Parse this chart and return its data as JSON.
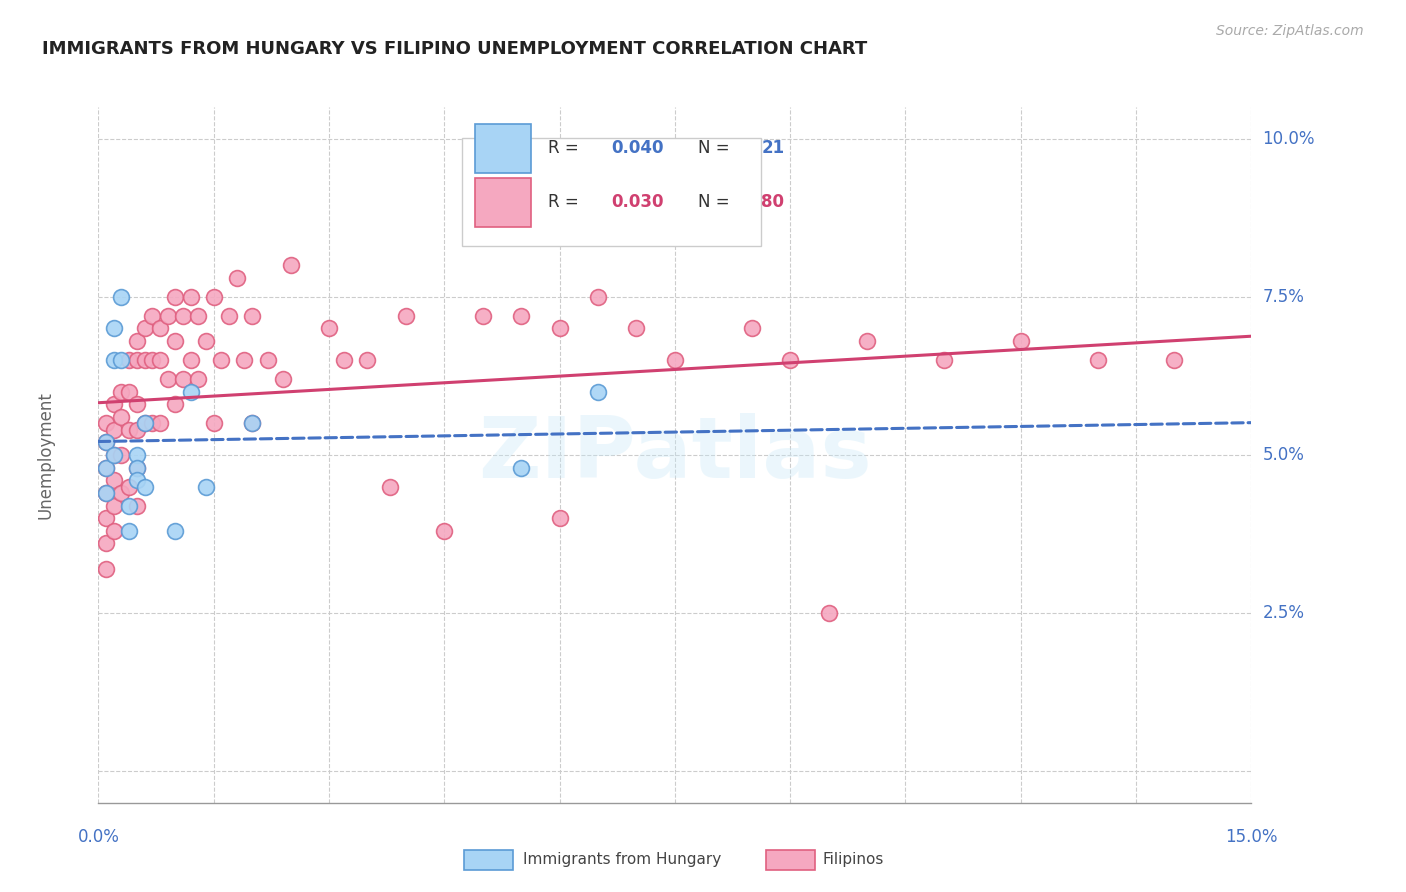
{
  "title": "IMMIGRANTS FROM HUNGARY VS FILIPINO UNEMPLOYMENT CORRELATION CHART",
  "source": "Source: ZipAtlas.com",
  "ylabel": "Unemployment",
  "color_hungary_fill": "#a8d4f5",
  "color_hungary_edge": "#5b9bd5",
  "color_filipino_fill": "#f5a8c0",
  "color_filipino_edge": "#e06080",
  "color_blue": "#4472C4",
  "color_pink": "#d04070",
  "color_label_blue": "#4472C4",
  "color_grid": "#cccccc",
  "xlim": [
    0.0,
    0.15
  ],
  "ylim": [
    -0.005,
    0.105
  ],
  "ytick_vals": [
    0.0,
    0.025,
    0.05,
    0.075,
    0.1
  ],
  "ytick_labels": [
    "",
    "2.5%",
    "5.0%",
    "7.5%",
    "10.0%"
  ],
  "xtick_vals": [
    0.0,
    0.015,
    0.03,
    0.045,
    0.06,
    0.075,
    0.09,
    0.105,
    0.12,
    0.135,
    0.15
  ],
  "watermark": "ZIPatlas",
  "hungary_x": [
    0.001,
    0.001,
    0.001,
    0.002,
    0.002,
    0.002,
    0.003,
    0.003,
    0.004,
    0.004,
    0.005,
    0.005,
    0.005,
    0.006,
    0.006,
    0.01,
    0.012,
    0.014,
    0.02,
    0.055,
    0.065
  ],
  "hungary_y": [
    0.052,
    0.048,
    0.044,
    0.07,
    0.065,
    0.05,
    0.075,
    0.065,
    0.042,
    0.038,
    0.05,
    0.048,
    0.046,
    0.055,
    0.045,
    0.038,
    0.06,
    0.045,
    0.055,
    0.048,
    0.06
  ],
  "filipino_x": [
    0.001,
    0.001,
    0.001,
    0.001,
    0.001,
    0.001,
    0.001,
    0.002,
    0.002,
    0.002,
    0.002,
    0.002,
    0.002,
    0.003,
    0.003,
    0.003,
    0.003,
    0.004,
    0.004,
    0.004,
    0.004,
    0.005,
    0.005,
    0.005,
    0.005,
    0.005,
    0.005,
    0.006,
    0.006,
    0.006,
    0.007,
    0.007,
    0.007,
    0.008,
    0.008,
    0.008,
    0.009,
    0.009,
    0.01,
    0.01,
    0.01,
    0.011,
    0.011,
    0.012,
    0.012,
    0.013,
    0.013,
    0.014,
    0.015,
    0.015,
    0.016,
    0.017,
    0.018,
    0.019,
    0.02,
    0.02,
    0.022,
    0.024,
    0.025,
    0.03,
    0.032,
    0.035,
    0.04,
    0.05,
    0.055,
    0.06,
    0.065,
    0.07,
    0.075,
    0.085,
    0.09,
    0.1,
    0.11,
    0.12,
    0.13,
    0.14,
    0.038,
    0.045,
    0.06,
    0.095
  ],
  "filipino_y": [
    0.055,
    0.052,
    0.048,
    0.044,
    0.04,
    0.036,
    0.032,
    0.058,
    0.054,
    0.05,
    0.046,
    0.042,
    0.038,
    0.06,
    0.056,
    0.05,
    0.044,
    0.065,
    0.06,
    0.054,
    0.045,
    0.068,
    0.065,
    0.058,
    0.054,
    0.048,
    0.042,
    0.07,
    0.065,
    0.055,
    0.072,
    0.065,
    0.055,
    0.07,
    0.065,
    0.055,
    0.072,
    0.062,
    0.075,
    0.068,
    0.058,
    0.072,
    0.062,
    0.075,
    0.065,
    0.072,
    0.062,
    0.068,
    0.075,
    0.055,
    0.065,
    0.072,
    0.078,
    0.065,
    0.072,
    0.055,
    0.065,
    0.062,
    0.08,
    0.07,
    0.065,
    0.065,
    0.072,
    0.072,
    0.072,
    0.07,
    0.075,
    0.07,
    0.065,
    0.07,
    0.065,
    0.068,
    0.065,
    0.068,
    0.065,
    0.065,
    0.045,
    0.038,
    0.04,
    0.025
  ]
}
